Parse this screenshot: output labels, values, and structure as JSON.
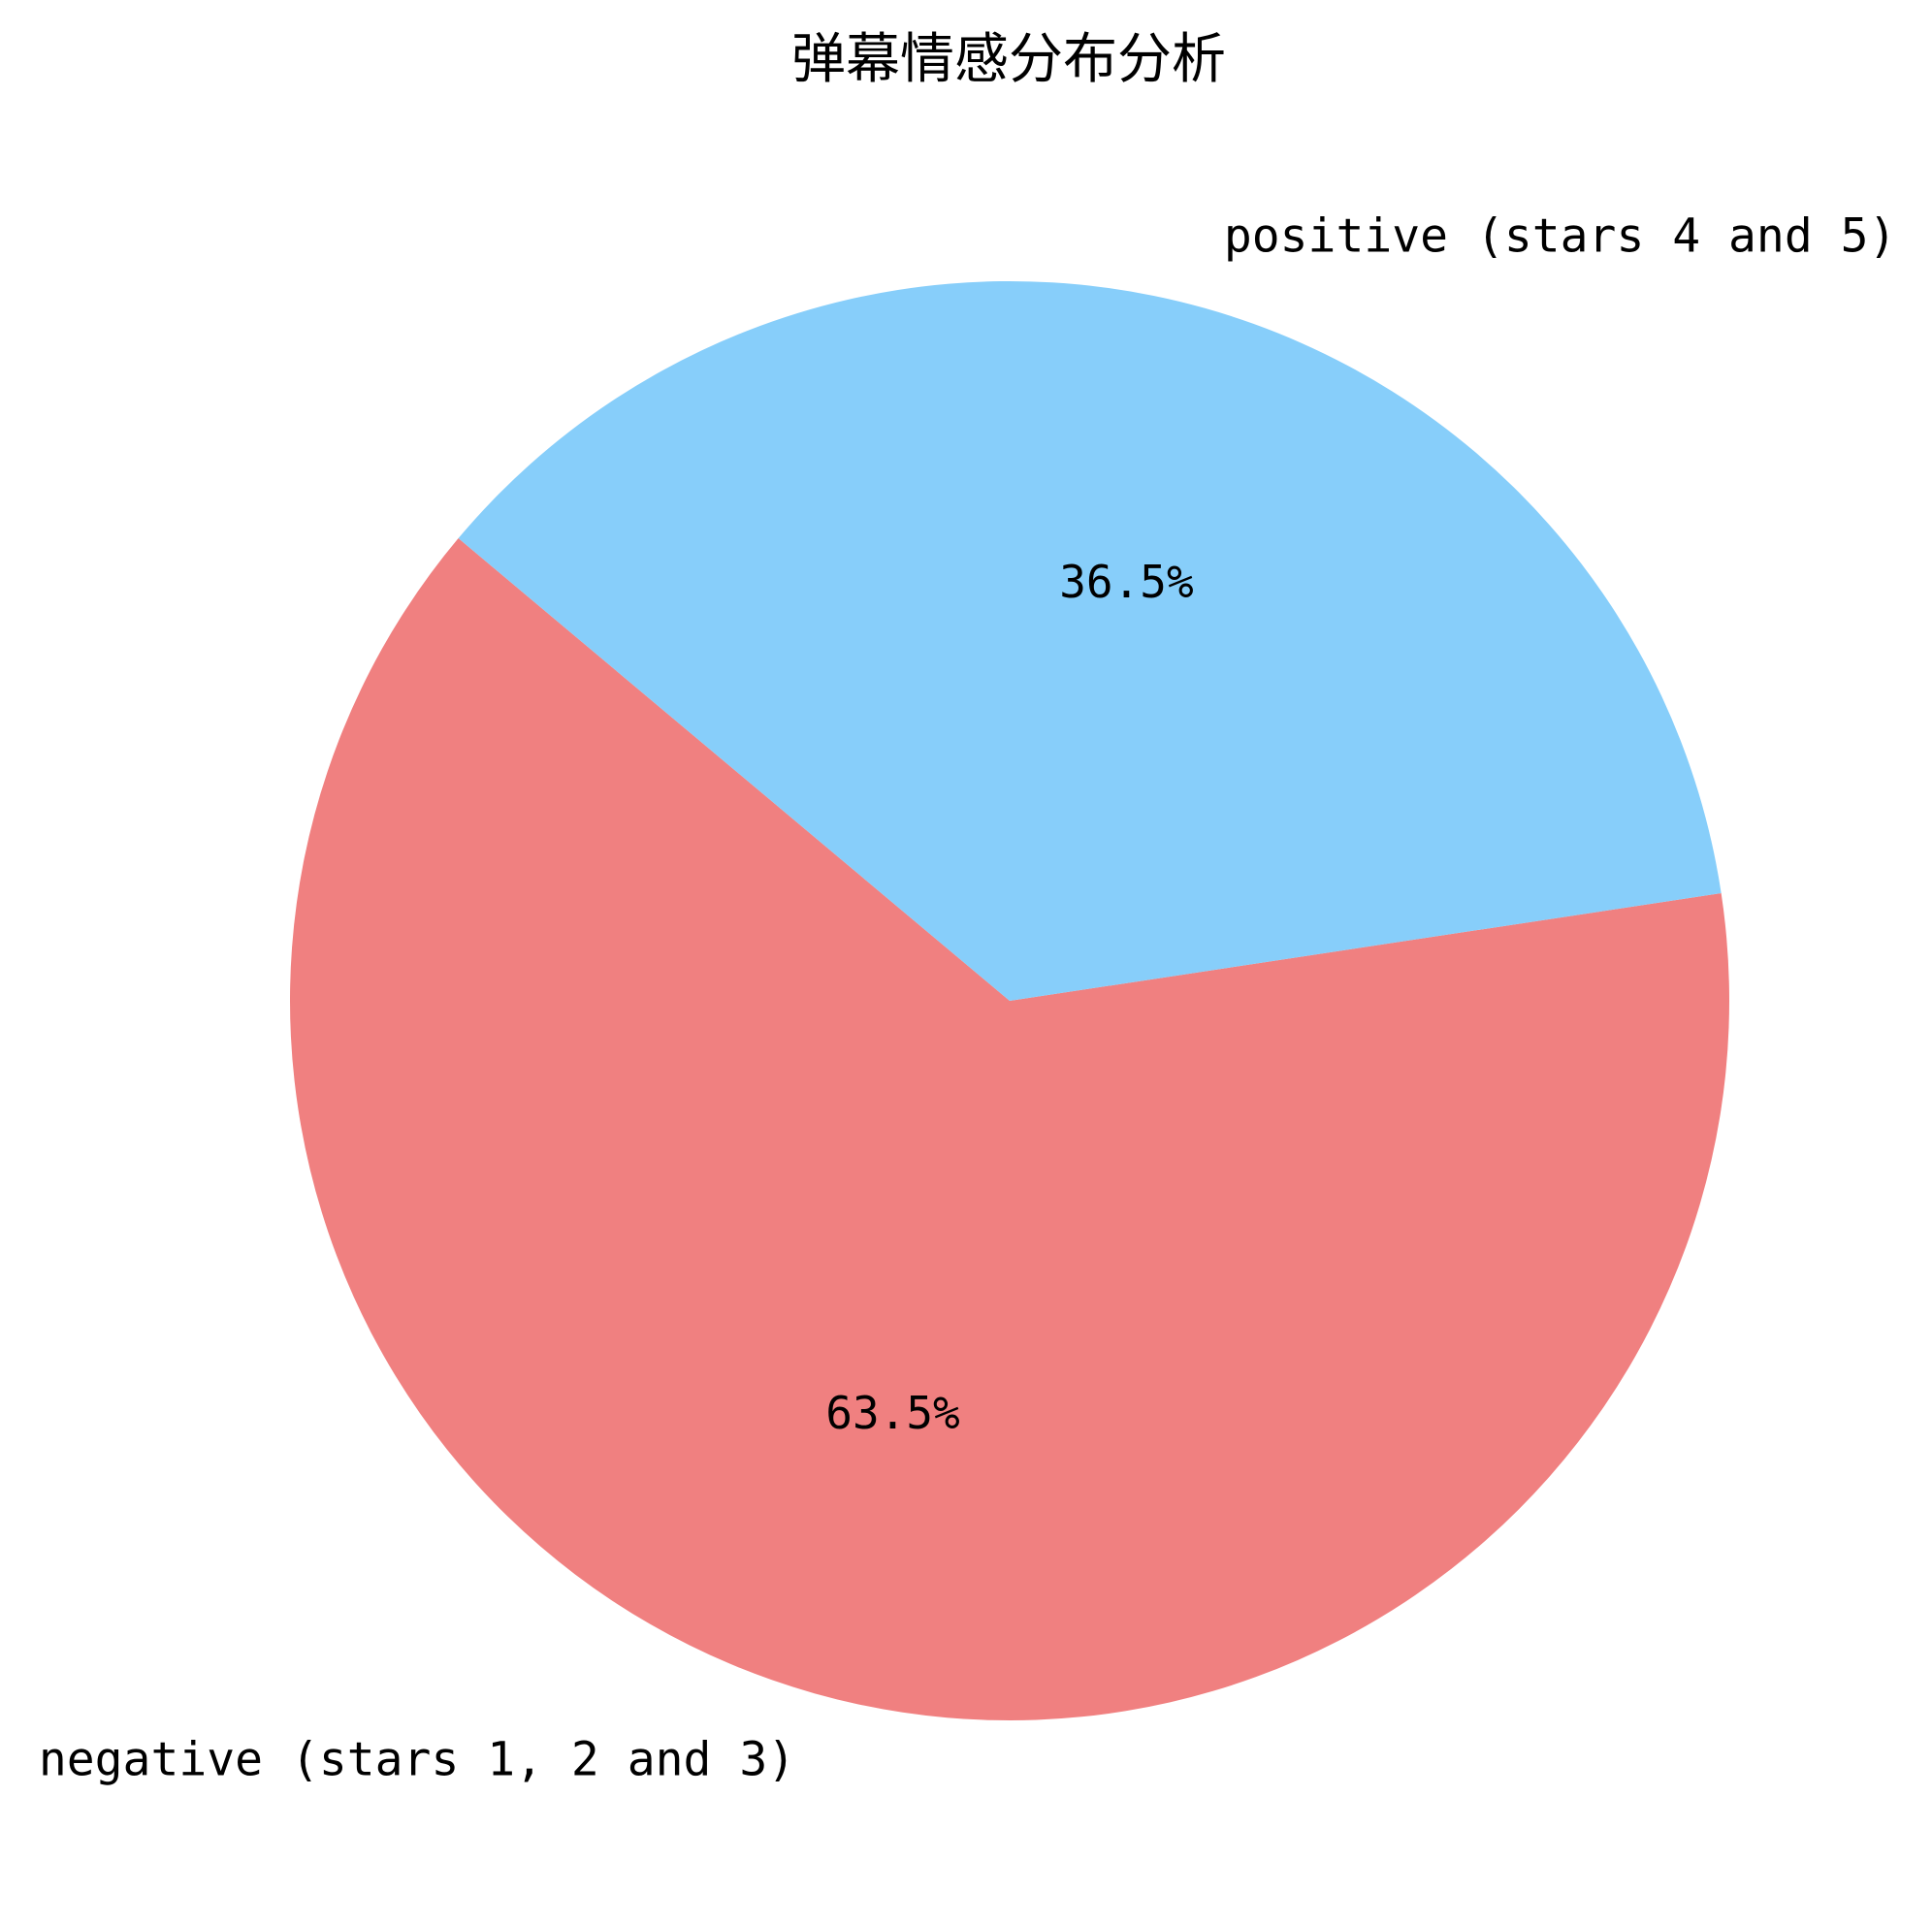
{
  "chart_data": {
    "type": "pie",
    "title": "弹幕情感分布分析",
    "categories": [
      "negative (stars 1, 2 and 3)",
      "positive (stars 4 and 5)"
    ],
    "values": [
      63.5,
      36.5
    ],
    "percent_labels": [
      "63.5%",
      "36.5%"
    ],
    "colors": [
      "#f08080",
      "#87cefa"
    ],
    "legend": "none"
  }
}
